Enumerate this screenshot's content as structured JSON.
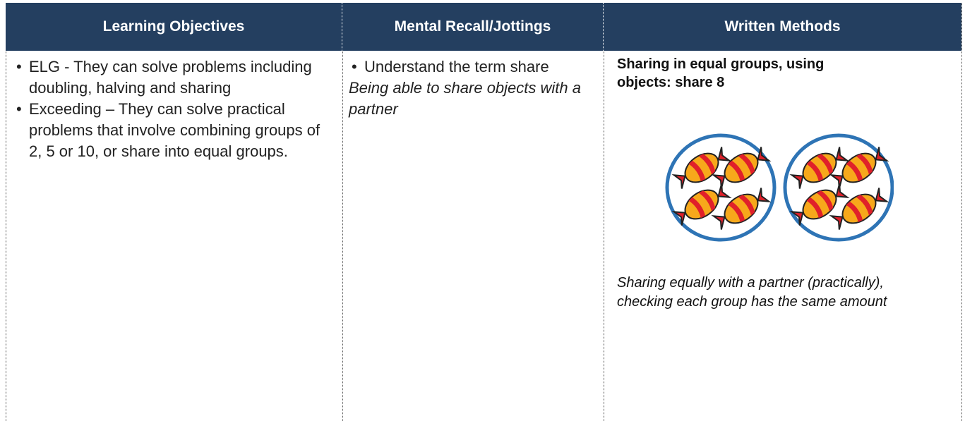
{
  "table": {
    "headers": [
      "Learning Objectives",
      "Mental Recall/Jottings",
      "Written Methods"
    ],
    "objectives": [
      "ELG - They can solve problems including doubling, halving and sharing",
      "Exceeding – They can solve practical problems that involve combining groups of 2, 5 or 10, or share into equal groups."
    ],
    "mental": {
      "bullets": [
        "Understand the term share"
      ],
      "note": "Being able to share objects with a partner"
    },
    "written": {
      "heading": "Sharing in equal groups, using objects: share 8",
      "caption": "Sharing equally with a partner (practically), checking each group has the same amount"
    }
  }
}
